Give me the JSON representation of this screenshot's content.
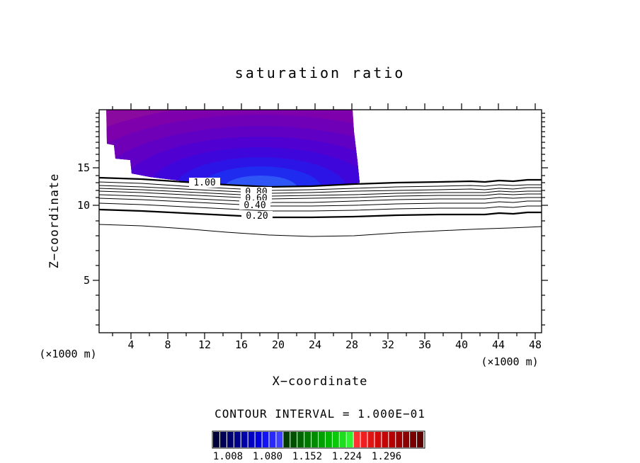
{
  "chart_data": {
    "type": "contour",
    "title": "saturation ratio",
    "xlabel": "X−coordinate",
    "x_units": "(×1000 m)",
    "ylabel": "Z−coordinate",
    "y_units": "(×1000 m)",
    "x_tick_values": [
      4,
      8,
      12,
      16,
      20,
      24,
      28,
      32,
      36,
      40,
      44,
      48
    ],
    "y_tick_values": [
      5,
      10,
      15
    ],
    "contour_interval_label": "CONTOUR INTERVAL = 1.000E−01",
    "contour_interval": 0.1,
    "line_contour_levels": [
      0.1,
      0.2,
      0.3,
      0.4,
      0.5,
      0.6,
      0.7,
      0.8,
      0.9,
      1.0
    ],
    "labeled_levels": [
      1.0,
      0.8,
      0.6,
      0.4,
      0.2
    ],
    "contour_line_labels": [
      "1.00",
      "0.80",
      "0.60",
      "0.40",
      "0.20"
    ],
    "line_contours_shape": "near-horizontal wavy contour lines spanning the full x range, bunched between z ≈ 11 and z ≈ 14, with the lowest (0.1) contour dipping to z ≈ 9 near mid-domain",
    "filled_region": {
      "meaning": "filled color contours where saturation ratio exceeds 1.0 (supersaturated layer)",
      "extent": "upper portion of the plot, x ≈ 1–29 (×1000 m), from the top edge down to z ≈ 14, with an irregular stepped left edge and bands becoming bluer toward the bottom-center",
      "colors_outer_to_inner": [
        "#8a0aa0",
        "#7d00ac",
        "#6f00b8",
        "#6000c4",
        "#5000d0",
        "#3f06dc",
        "#2d14e6",
        "#1f2cef",
        "#2e56f6"
      ]
    },
    "colorbar": {
      "tick_labels": [
        "1.008",
        "1.080",
        "1.152",
        "1.224",
        "1.296"
      ],
      "label_color": "#8b1a1a",
      "segment_colors": [
        "#00003a",
        "#000055",
        "#000070",
        "#00008b",
        "#0000a6",
        "#0000c1",
        "#0000dc",
        "#1414f0",
        "#2828fa",
        "#4040ff",
        "#003c00",
        "#005000",
        "#006400",
        "#007800",
        "#008c00",
        "#00a000",
        "#00b400",
        "#0ac80a",
        "#1edc1e",
        "#32f032",
        "#ff3232",
        "#f01e1e",
        "#e11414",
        "#d20a0a",
        "#c30505",
        "#b40000",
        "#a00000",
        "#8c0000",
        "#780000",
        "#600000"
      ]
    },
    "axis_ranges_note": "x axis 0–50 (×1000 m); z axis stretched vertical coordinate with labeled levels 5, 10, 15"
  }
}
